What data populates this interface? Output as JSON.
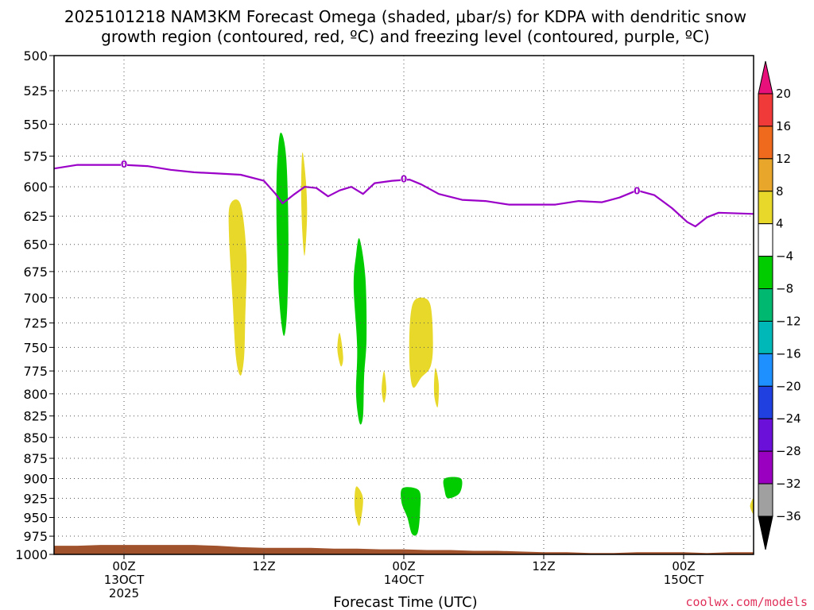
{
  "title": {
    "line1": "2025101218 NAM3KM Forecast Omega (shaded, μbar/s) for KDPA with dendritic snow",
    "line2": "growth region (contoured, red, ºC) and freezing level (contoured, purple, ºC)"
  },
  "credit": "coolwx.com/models",
  "chart_data": {
    "type": "time-height cross section",
    "title": "2025101218 NAM3KM Forecast Omega (shaded, μbar/s) for KDPA with dendritic snow growth region (contoured, red, ºC) and freezing level (contoured, purple, ºC)",
    "xlabel": "Forecast Time (UTC)",
    "ylabel": "",
    "x_units": "hours since 2025-10-12 18Z",
    "xlim": [
      0,
      60
    ],
    "ylim": [
      1000,
      500
    ],
    "y_scale": "log-pressure",
    "grid": true,
    "y_ticks": [
      500,
      525,
      550,
      575,
      600,
      625,
      650,
      675,
      700,
      725,
      750,
      775,
      800,
      825,
      850,
      875,
      900,
      925,
      950,
      975,
      1000
    ],
    "x_ticks": [
      {
        "x": 6,
        "lines": [
          "00Z",
          "13OCT",
          "2025"
        ]
      },
      {
        "x": 18,
        "lines": [
          "12Z"
        ]
      },
      {
        "x": 30,
        "lines": [
          "00Z",
          "14OCT"
        ]
      },
      {
        "x": 42,
        "lines": [
          "12Z"
        ]
      },
      {
        "x": 54,
        "lines": [
          "00Z",
          "15OCT"
        ]
      }
    ],
    "colorbar": {
      "labels": [
        "20",
        "16",
        "12",
        "8",
        "4",
        "−4",
        "−8",
        "−12",
        "−16",
        "−20",
        "−24",
        "−28",
        "−32",
        "−36"
      ],
      "top_arrow_color": "#e8107a",
      "bottom_arrow_color": "#000000",
      "colors": [
        "#f03a3a",
        "#f06a1e",
        "#e8a62a",
        "#e8d82a",
        "#ffffff",
        "#00cc00",
        "#00b870",
        "#00b8b8",
        "#1e90ff",
        "#2040e0",
        "#6a10d8",
        "#9a00c0",
        "#a0a0a0"
      ]
    },
    "freezing_level": {
      "color": "#9a00c8",
      "label": "0",
      "label_points": [
        [
          6,
          581
        ],
        [
          30,
          593
        ],
        [
          50,
          603
        ]
      ],
      "points": [
        [
          0,
          585
        ],
        [
          2,
          582
        ],
        [
          4,
          582
        ],
        [
          6,
          582
        ],
        [
          8,
          583
        ],
        [
          10,
          586
        ],
        [
          12,
          588
        ],
        [
          14,
          589
        ],
        [
          16,
          590
        ],
        [
          18,
          595
        ],
        [
          19,
          606
        ],
        [
          19.6,
          614
        ],
        [
          20.5,
          607
        ],
        [
          21.5,
          600
        ],
        [
          22.5,
          601
        ],
        [
          23.5,
          608
        ],
        [
          24.5,
          603
        ],
        [
          25.5,
          600
        ],
        [
          26.5,
          606
        ],
        [
          27.5,
          597
        ],
        [
          29,
          595
        ],
        [
          30.5,
          594
        ],
        [
          31.5,
          598
        ],
        [
          33,
          606
        ],
        [
          35,
          611
        ],
        [
          37,
          612
        ],
        [
          39,
          615
        ],
        [
          41,
          615
        ],
        [
          43,
          615
        ],
        [
          45,
          612
        ],
        [
          47,
          613
        ],
        [
          48.5,
          609
        ],
        [
          50,
          603
        ],
        [
          51.5,
          607
        ],
        [
          53,
          618
        ],
        [
          54.3,
          630
        ],
        [
          55,
          634
        ],
        [
          56,
          626
        ],
        [
          57,
          622
        ],
        [
          60,
          623
        ]
      ]
    },
    "ground": {
      "color": "#a0522d",
      "points": [
        [
          0,
          988
        ],
        [
          2,
          988
        ],
        [
          4,
          987
        ],
        [
          6,
          987
        ],
        [
          8,
          987
        ],
        [
          10,
          987
        ],
        [
          12,
          987
        ],
        [
          14,
          988
        ],
        [
          16,
          990
        ],
        [
          18,
          991
        ],
        [
          20,
          991
        ],
        [
          22,
          991
        ],
        [
          24,
          992
        ],
        [
          26,
          992
        ],
        [
          28,
          993
        ],
        [
          30,
          993
        ],
        [
          32,
          994
        ],
        [
          34,
          994
        ],
        [
          36,
          995
        ],
        [
          38,
          995
        ],
        [
          40,
          996
        ],
        [
          42,
          997
        ],
        [
          44,
          997
        ],
        [
          46,
          998
        ],
        [
          48,
          998
        ],
        [
          50,
          997
        ],
        [
          52,
          997
        ],
        [
          54,
          997
        ],
        [
          56,
          998
        ],
        [
          58,
          997
        ],
        [
          60,
          997
        ]
      ]
    },
    "omega_regions": [
      {
        "value_range": [
          4,
          8
        ],
        "color": "#e8d82a",
        "points": [
          [
            15.1,
            615
          ],
          [
            16.0,
            615
          ],
          [
            16.5,
            660
          ],
          [
            16.4,
            720
          ],
          [
            16.3,
            760
          ],
          [
            16.0,
            780
          ],
          [
            15.6,
            760
          ],
          [
            15.3,
            700
          ],
          [
            15.0,
            640
          ]
        ]
      },
      {
        "value_range": [
          -8,
          -4
        ],
        "color": "#00cc00",
        "points": [
          [
            19.4,
            557
          ],
          [
            19.9,
            575
          ],
          [
            20.1,
            640
          ],
          [
            20.0,
            710
          ],
          [
            19.7,
            738
          ],
          [
            19.3,
            700
          ],
          [
            19.1,
            640
          ],
          [
            19.1,
            590
          ]
        ]
      },
      {
        "value_range": [
          4,
          8
        ],
        "color": "#e8d82a",
        "points": [
          [
            21.3,
            572
          ],
          [
            21.6,
            595
          ],
          [
            21.7,
            625
          ],
          [
            21.5,
            660
          ],
          [
            21.3,
            640
          ],
          [
            21.2,
            605
          ]
        ]
      },
      {
        "value_range": [
          -8,
          -4
        ],
        "color": "#00cc00",
        "points": [
          [
            26.2,
            645
          ],
          [
            26.7,
            680
          ],
          [
            26.8,
            740
          ],
          [
            26.6,
            780
          ],
          [
            26.5,
            825
          ],
          [
            26.2,
            833
          ],
          [
            25.9,
            800
          ],
          [
            26.0,
            750
          ],
          [
            25.7,
            690
          ],
          [
            25.9,
            660
          ]
        ]
      },
      {
        "value_range": [
          4,
          8
        ],
        "color": "#e8d82a",
        "points": [
          [
            24.5,
            735
          ],
          [
            24.8,
            760
          ],
          [
            24.6,
            770
          ],
          [
            24.3,
            752
          ]
        ]
      },
      {
        "value_range": [
          4,
          8
        ],
        "color": "#e8d82a",
        "points": [
          [
            28.3,
            775
          ],
          [
            28.5,
            795
          ],
          [
            28.3,
            810
          ],
          [
            28.1,
            795
          ]
        ]
      },
      {
        "value_range": [
          4,
          8
        ],
        "color": "#e8d82a",
        "points": [
          [
            30.8,
            705
          ],
          [
            31.6,
            700
          ],
          [
            32.3,
            708
          ],
          [
            32.5,
            745
          ],
          [
            32.3,
            770
          ],
          [
            31.5,
            782
          ],
          [
            30.8,
            793
          ],
          [
            30.5,
            770
          ],
          [
            30.5,
            730
          ]
        ]
      },
      {
        "value_range": [
          4,
          8
        ],
        "color": "#e8d82a",
        "points": [
          [
            32.7,
            772
          ],
          [
            33.0,
            790
          ],
          [
            32.9,
            815
          ],
          [
            32.6,
            800
          ]
        ]
      },
      {
        "value_range": [
          4,
          8
        ],
        "color": "#e8d82a",
        "points": [
          [
            26.0,
            910
          ],
          [
            26.5,
            925
          ],
          [
            26.3,
            955
          ],
          [
            26.1,
            960
          ],
          [
            25.8,
            940
          ],
          [
            25.8,
            918
          ]
        ]
      },
      {
        "value_range": [
          -8,
          -4
        ],
        "color": "#00cc00",
        "points": [
          [
            29.9,
            912
          ],
          [
            31.3,
            915
          ],
          [
            31.4,
            940
          ],
          [
            31.2,
            970
          ],
          [
            30.7,
            972
          ],
          [
            30.3,
            950
          ],
          [
            29.8,
            930
          ]
        ]
      },
      {
        "value_range": [
          -8,
          -4
        ],
        "color": "#00cc00",
        "points": [
          [
            33.5,
            900
          ],
          [
            34.9,
            900
          ],
          [
            34.8,
            918
          ],
          [
            33.8,
            925
          ],
          [
            33.5,
            915
          ]
        ]
      },
      {
        "value_range": [
          4,
          8
        ],
        "color": "#e8d82a",
        "points": [
          [
            60,
            925
          ],
          [
            59.7,
            935
          ],
          [
            60,
            945
          ]
        ]
      }
    ]
  }
}
